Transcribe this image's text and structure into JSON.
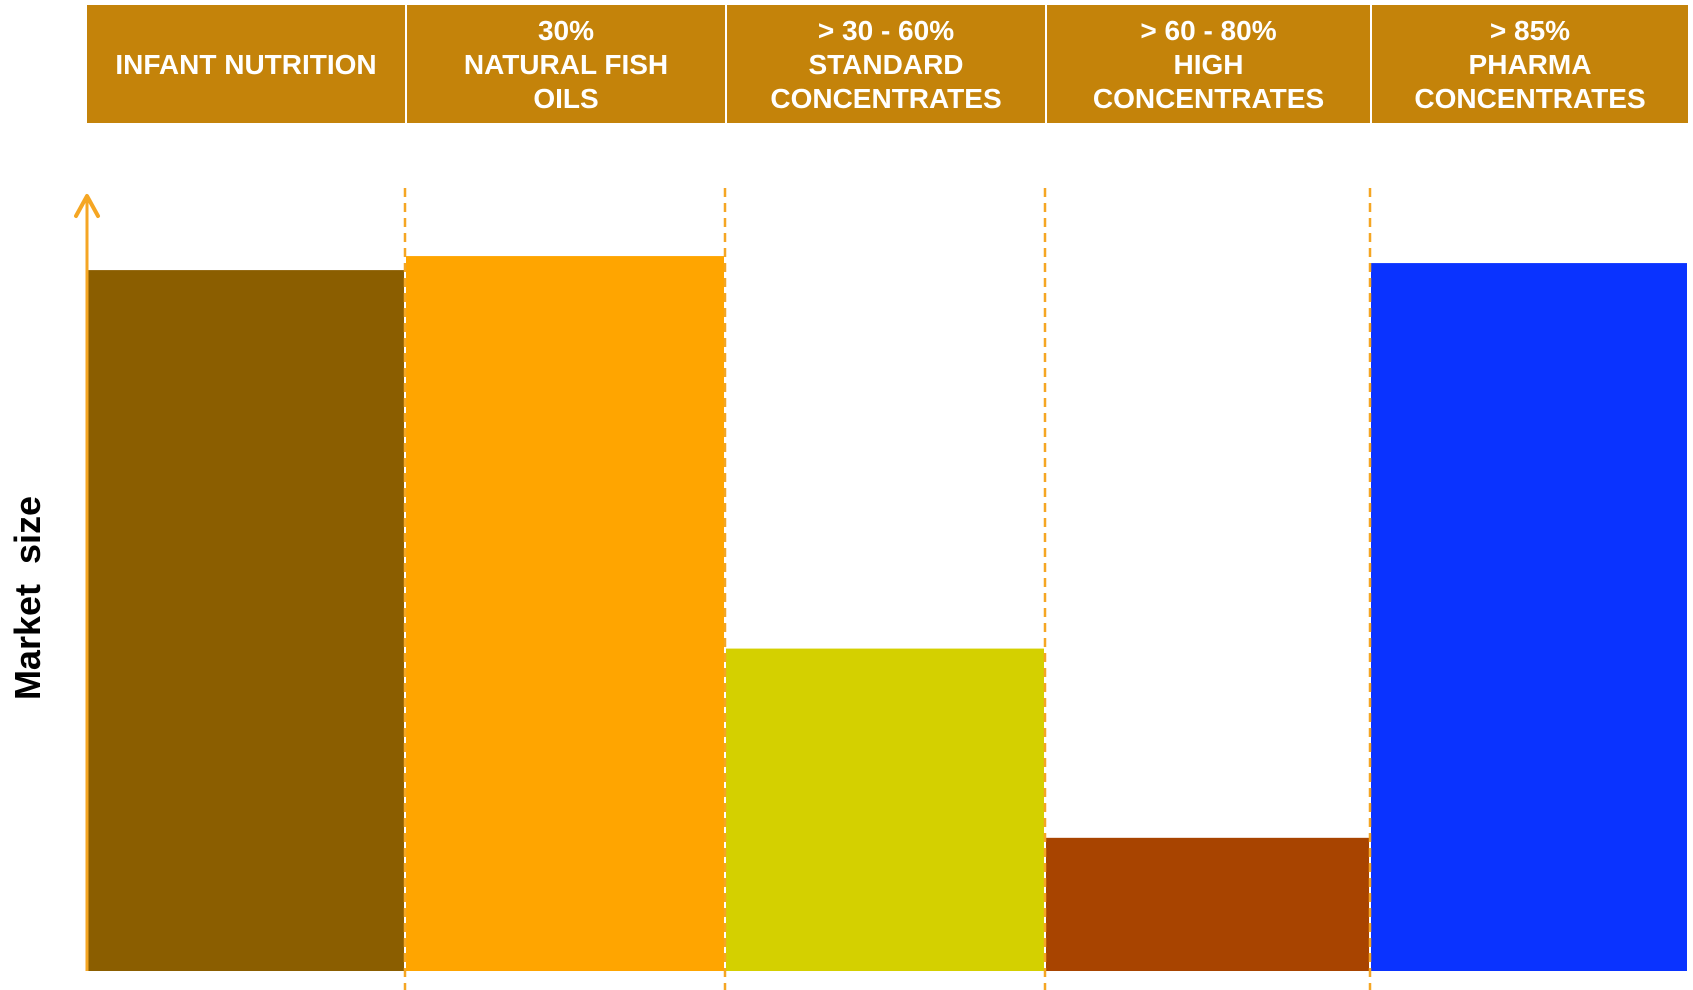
{
  "chart_data": {
    "type": "bar",
    "ylabel": "Market  size",
    "header_color": "#C4830A",
    "guide_color": "#F5A623",
    "categories": [
      [
        "INFANT NUTRITION"
      ],
      [
        "30%",
        "NATURAL FISH",
        "OILS"
      ],
      [
        "> 30 - 60%",
        "STANDARD",
        "CONCENTRATES"
      ],
      [
        "> 60 - 80%",
        "HIGH",
        "CONCENTRATES"
      ],
      [
        "> 85%",
        "PHARMA",
        "CONCENTRATES"
      ]
    ],
    "values": [
      100,
      102,
      46,
      19,
      101
    ],
    "colors": [
      "#8B5E00",
      "#FFA500",
      "#D4D000",
      "#A84400",
      "#0A33FF"
    ],
    "ylim": [
      0,
      110
    ],
    "grid": false
  }
}
